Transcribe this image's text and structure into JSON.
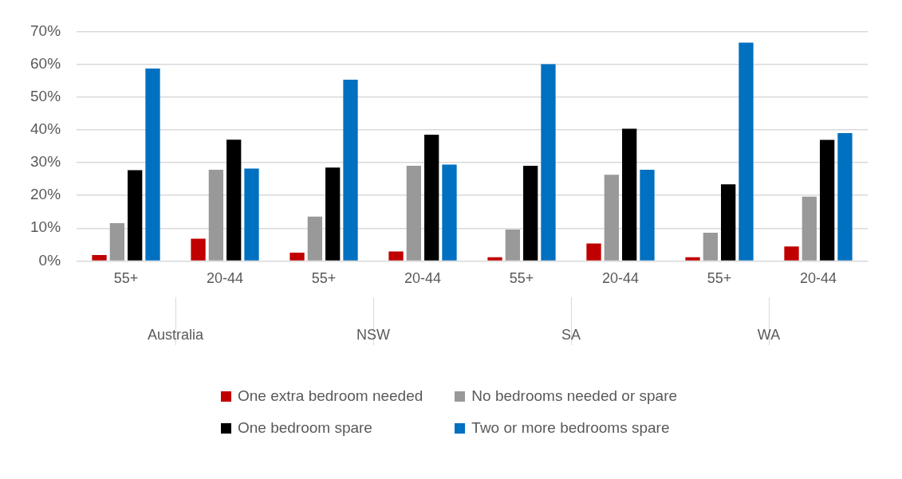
{
  "chart_data": {
    "type": "bar",
    "categories": [
      "55+",
      "20-44",
      "55+",
      "20-44",
      "55+",
      "20-44",
      "55+",
      "20-44"
    ],
    "annotations": [
      "Australia",
      "NSW",
      "SA",
      "WA"
    ],
    "series": [
      {
        "name": "One extra bedroom needed",
        "color": "#c00000",
        "values": [
          1.8,
          6.8,
          2.5,
          2.9,
          1.1,
          5.3,
          1.1,
          4.4
        ]
      },
      {
        "name": "No bedrooms needed or spare",
        "color": "#999999",
        "values": [
          11.5,
          27.8,
          13.5,
          29.0,
          9.6,
          26.3,
          8.6,
          19.6
        ]
      },
      {
        "name": "One bedroom spare",
        "color": "#000000",
        "values": [
          27.7,
          37.0,
          28.5,
          38.5,
          29.0,
          40.3,
          23.4,
          36.9
        ]
      },
      {
        "name": "Two or more bedrooms spare",
        "color": "#0070c0",
        "values": [
          58.7,
          28.2,
          55.3,
          29.4,
          60.0,
          27.8,
          66.6,
          39.0
        ]
      }
    ],
    "ylim": [
      0,
      70
    ],
    "yticks": [
      {
        "value": 0,
        "label": "0%"
      },
      {
        "value": 10,
        "label": "10%"
      },
      {
        "value": 20,
        "label": "20%"
      },
      {
        "value": 30,
        "label": "30%"
      },
      {
        "value": 40,
        "label": "40%"
      },
      {
        "value": 50,
        "label": "50%"
      },
      {
        "value": 60,
        "label": "60%"
      },
      {
        "value": 70,
        "label": "70%"
      }
    ],
    "grid": "y",
    "legend": "bottom"
  }
}
